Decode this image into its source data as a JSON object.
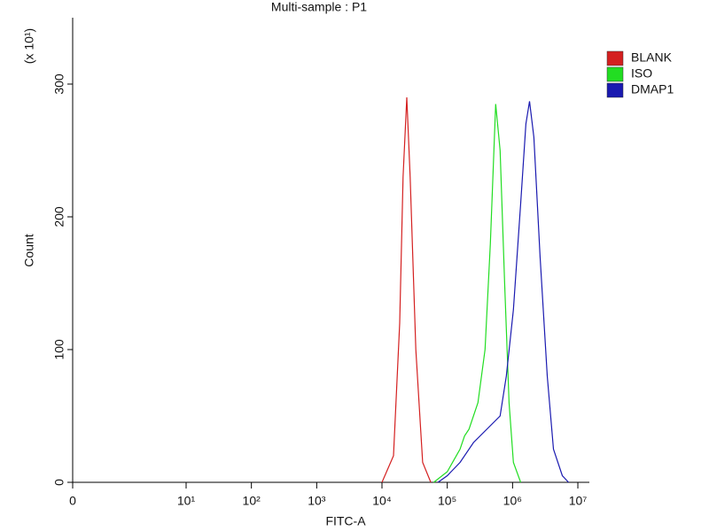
{
  "chart_data": {
    "type": "histogram-overlay",
    "title": "Multi-sample : P1",
    "x_label": "FITC-A",
    "y_label": "Count",
    "y_multiplier": "(x 10¹)",
    "xscale": "biexponential",
    "xlim": [
      0,
      15000000
    ],
    "xticks": [
      0,
      {
        "value": 10,
        "label": "10¹"
      },
      {
        "value": 100,
        "label": "10²"
      },
      {
        "value": 1000,
        "label": "10³"
      },
      {
        "value": 10000,
        "label": "10⁴"
      },
      {
        "value": 100000,
        "label": "10⁵"
      },
      {
        "value": 1000000,
        "label": "10⁶"
      },
      {
        "value": 10000000,
        "label": "10⁷"
      }
    ],
    "ylim": [
      0,
      350
    ],
    "yticks": [
      0,
      100,
      200,
      300
    ],
    "legend": "right",
    "series": [
      {
        "name": "BLANK",
        "color": "#d42020",
        "x": [
          10000,
          15000,
          18700,
          21000,
          24000,
          27000,
          33000,
          42000,
          56000
        ],
        "values": [
          0,
          20,
          120,
          230,
          290,
          230,
          100,
          15,
          0
        ]
      },
      {
        "name": "ISO",
        "color": "#22dd22",
        "x": [
          62000,
          100000,
          157000,
          184000,
          215000,
          295000,
          379000,
          457000,
          551000,
          645000,
          755000,
          883000,
          1030000,
          1330000
        ],
        "values": [
          0,
          8,
          25,
          35,
          40,
          60,
          100,
          180,
          285,
          250,
          150,
          60,
          15,
          0
        ]
      },
      {
        "name": "DMAP1",
        "color": "#1a1ab0",
        "x": [
          72000,
          100000,
          157000,
          252000,
          403000,
          645000,
          803000,
          1030000,
          1330000,
          1600000,
          1820000,
          2120000,
          2640000,
          3400000,
          4230000,
          5780000,
          7200000
        ],
        "values": [
          0,
          5,
          15,
          30,
          40,
          50,
          80,
          130,
          210,
          270,
          287,
          260,
          170,
          80,
          25,
          5,
          0
        ]
      }
    ]
  }
}
